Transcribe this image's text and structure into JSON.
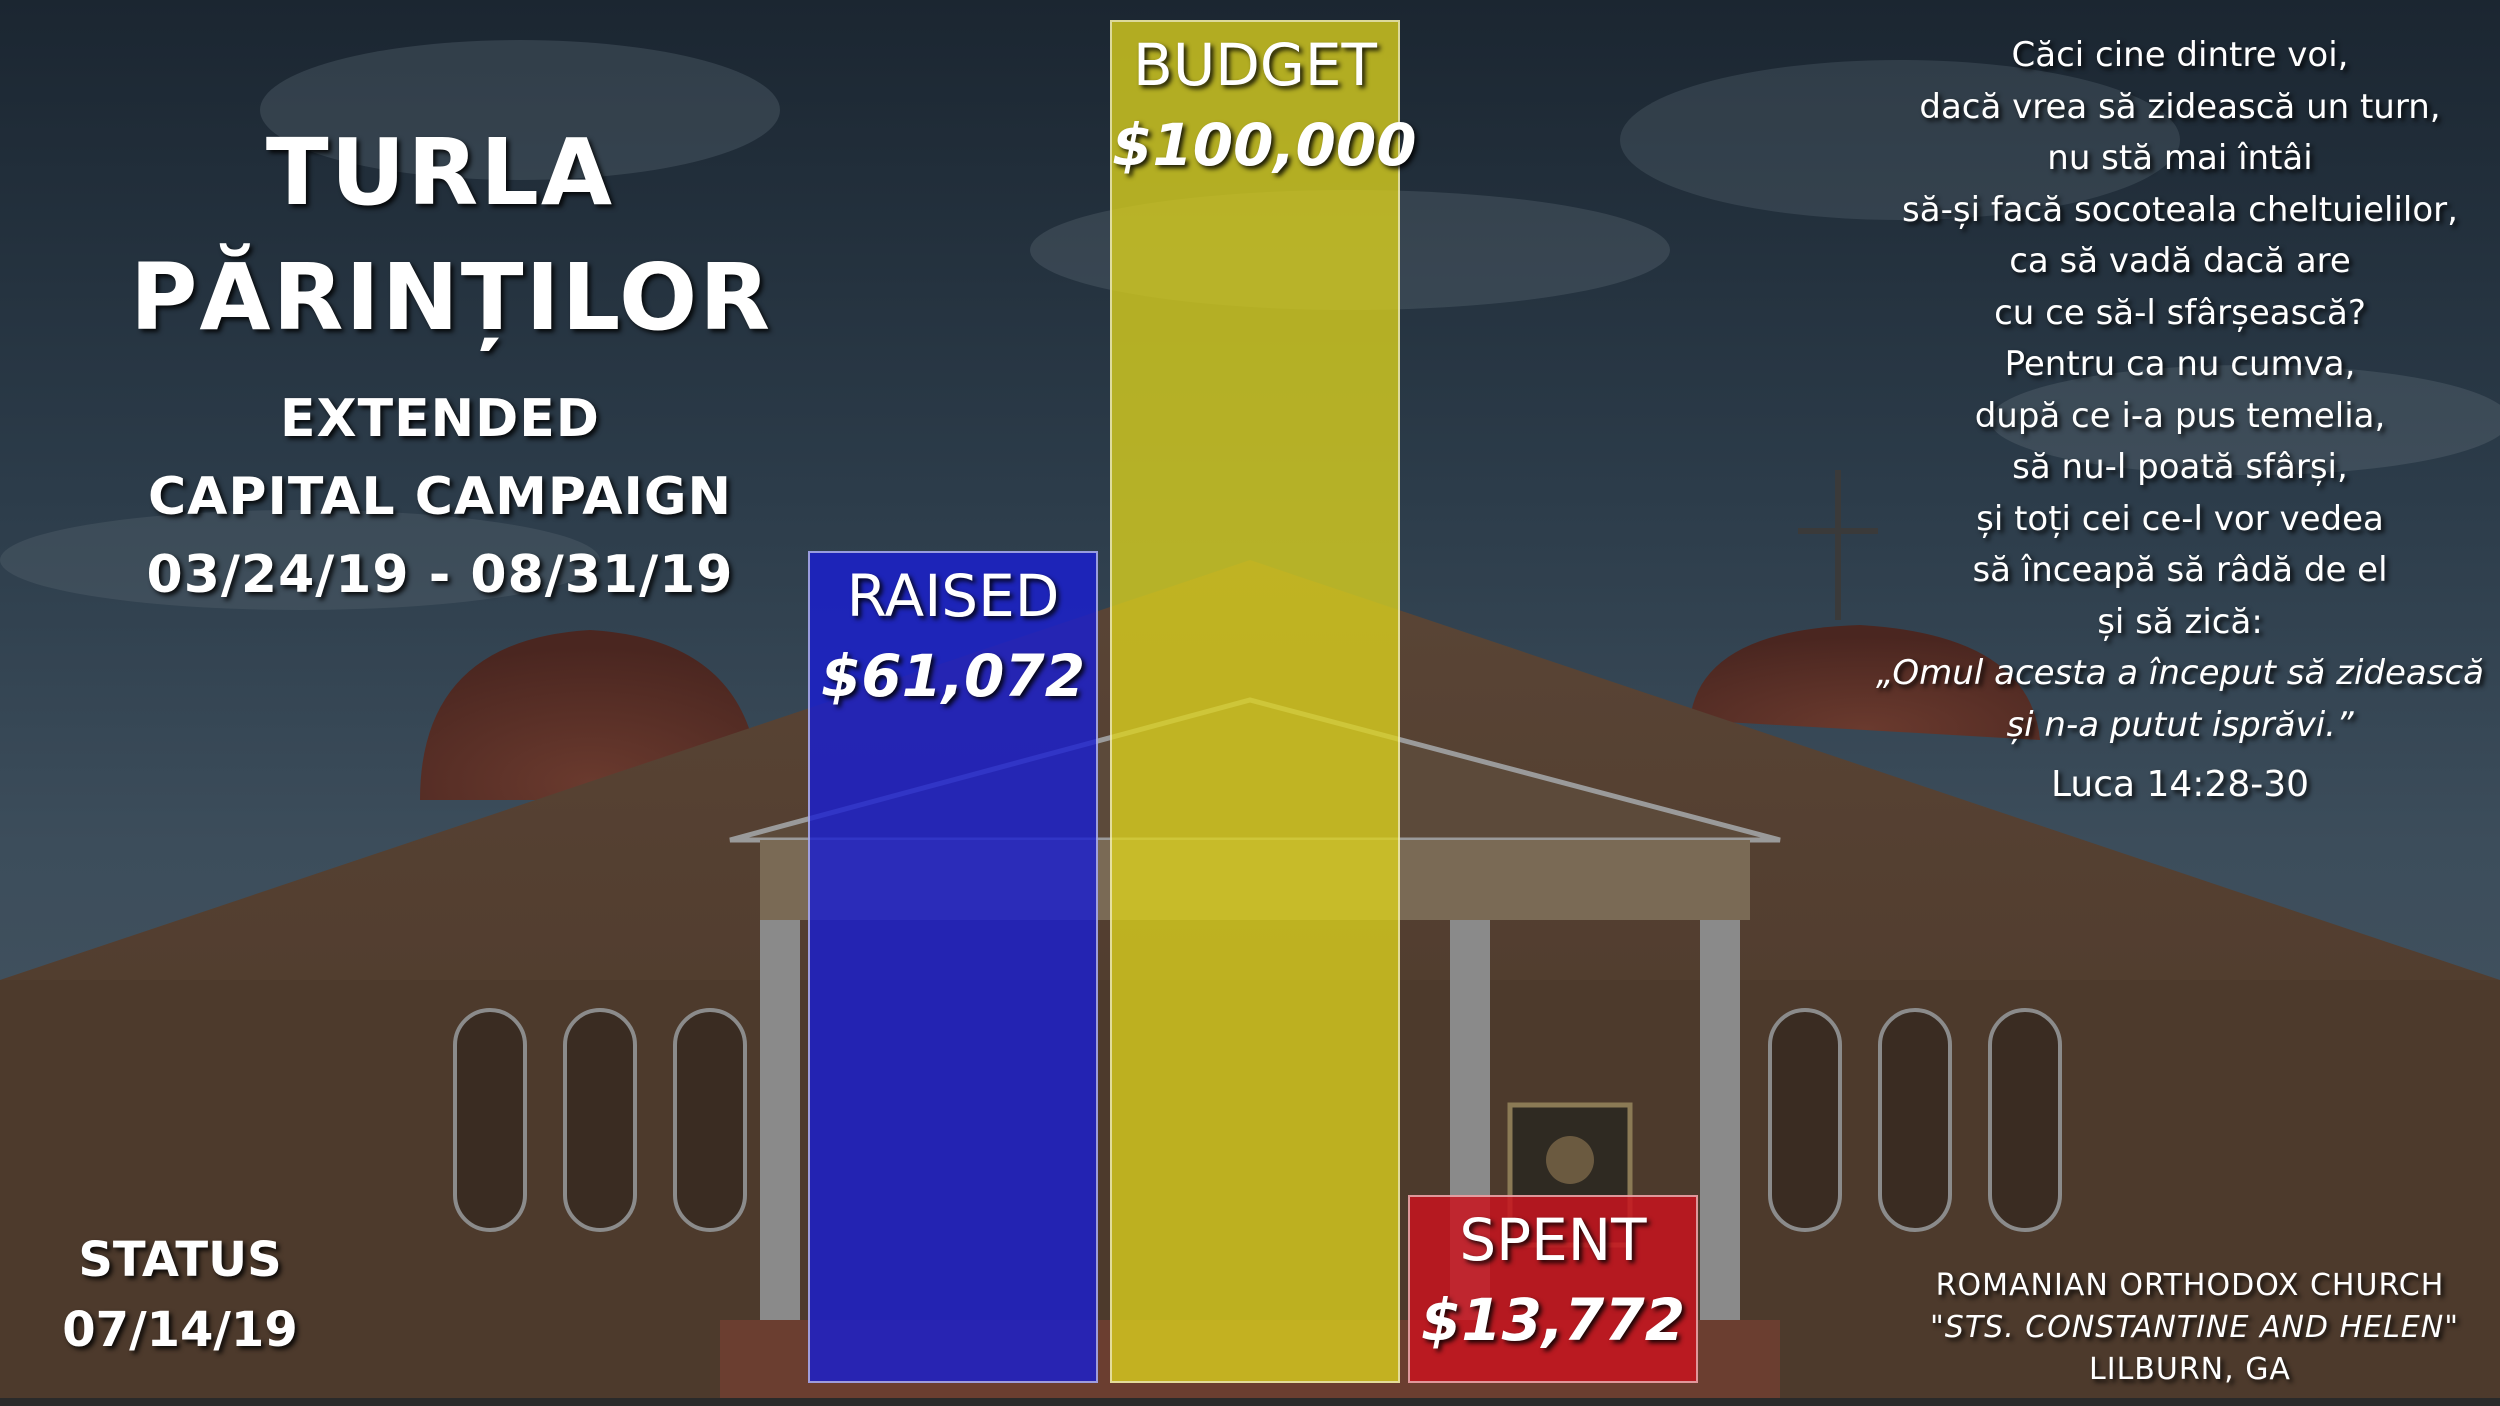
{
  "campaign": {
    "title_lines": [
      "TURLA",
      "PĂRINȚILOR"
    ],
    "subtitle_lines": [
      "EXTENDED",
      "CAPITAL  CAMPAIGN",
      "03/24/19 - 08/31/19"
    ],
    "status_lines": [
      "STATUS",
      "07/14/19"
    ]
  },
  "chart_data": {
    "type": "bar",
    "categories": [
      "RAISED",
      "BUDGET",
      "SPENT"
    ],
    "values": [
      61072,
      100000,
      13772
    ],
    "value_labels": [
      "$61,072",
      "$100,000",
      "$13,772"
    ],
    "colors": [
      "#1a1fd0",
      "#dcd21e",
      "#c8141e"
    ],
    "ylim": [
      0,
      100000
    ],
    "grid": false,
    "legend": "none"
  },
  "verse": {
    "lines": [
      "Căci cine dintre voi,",
      "dacă vrea să zidească un turn,",
      "nu stă mai întâi",
      "să-și facă socoteala cheltuielilor,",
      "ca să vadă dacă are",
      "cu ce să-l sfârșească?",
      "Pentru ca nu cumva,",
      "după ce i-a pus temelia,",
      "să nu-l poată sfârși,",
      "și toți cei ce-l vor vedea",
      "să înceapă să râdă de el",
      "și să zică:"
    ],
    "italic_lines": [
      "„Omul acesta a început să zidească",
      "și n-a putut isprăvi.”"
    ],
    "reference": "Luca 14:28-30"
  },
  "church": {
    "lines": [
      "ROMANIAN  ORTHODOX  CHURCH",
      "\"STS.  CONSTANTINE  AND  HELEN\"",
      "LILBURN,  GA"
    ]
  }
}
